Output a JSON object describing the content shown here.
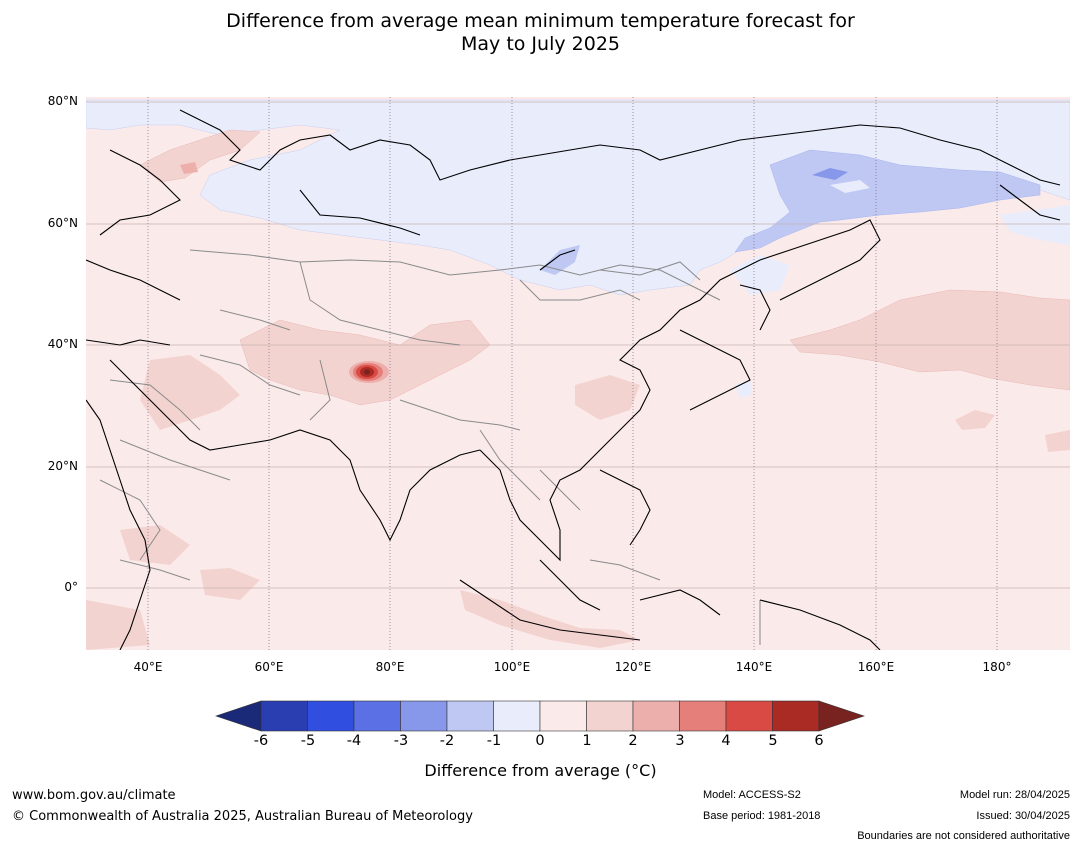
{
  "title": {
    "line1": "Difference from average mean minimum temperature forecast for",
    "line2": "May to July 2025"
  },
  "map": {
    "latitude_labels": [
      "80°N",
      "60°N",
      "40°N",
      "20°N",
      "0°"
    ],
    "longitude_labels": [
      "40°E",
      "60°E",
      "80°E",
      "100°E",
      "120°E",
      "140°E",
      "160°E",
      "180°"
    ],
    "extent": {
      "lon_min": 30,
      "lon_max": 192,
      "lat_min": -10,
      "lat_max": 81
    },
    "background_anomaly_band": "0 to 1",
    "features": [
      {
        "name": "arctic-coast-cool",
        "band": "-1 to 0"
      },
      {
        "name": "east-siberia-cool",
        "band": "-2 to -1"
      },
      {
        "name": "central-asia-hotspot",
        "band": "5 to 6"
      },
      {
        "name": "north-pacific-warm",
        "band": "1 to 2"
      }
    ]
  },
  "colorbar": {
    "ticks": [
      "-6",
      "-5",
      "-4",
      "-3",
      "-2",
      "-1",
      "0",
      "1",
      "2",
      "3",
      "4",
      "5",
      "6"
    ],
    "colors": [
      "#1b2a78",
      "#2a3eb1",
      "#304fe0",
      "#5b70e4",
      "#8797ea",
      "#bec8f3",
      "#e8ecfb",
      "#fbeaea",
      "#f3d3d0",
      "#edafac",
      "#e57f79",
      "#d94a44",
      "#aa2a24",
      "#782320"
    ],
    "label": "Difference from average (°C)"
  },
  "footer": {
    "website": "www.bom.gov.au/climate",
    "copyright": "© Commonwealth of Australia 2025, Australian Bureau of Meteorology",
    "model": "Model: ACCESS-S2",
    "base_period": "Base period: 1981-2018",
    "model_run": "Model run: 28/04/2025",
    "issued": "Issued: 30/04/2025",
    "disclaimer": "Boundaries are not considered authoritative"
  }
}
